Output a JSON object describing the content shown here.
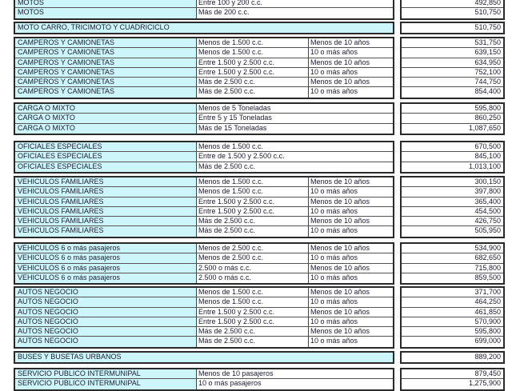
{
  "colors": {
    "category_bg": "#ccf6fa",
    "border": "#2a2a2a",
    "text": "#1c1c30"
  },
  "groups": [
    {
      "rows": [
        [
          "MOTOS",
          "Entre 100 y 200 c.c.",
          "",
          "492,850"
        ],
        [
          "MOTOS",
          "Más de 200 c.c.",
          "",
          "510,750"
        ]
      ]
    },
    {
      "rows": [
        [
          "MOTO CARRO, TRICIMOTO Y CUADRICICLO",
          "",
          "",
          "510,750"
        ]
      ]
    },
    {
      "rows": [
        [
          "CAMPEROS Y CAMIONETAS",
          "Menos de 1.500 c.c.",
          "Menos de 10 años",
          "531,750"
        ],
        [
          "CAMPEROS Y CAMIONETAS",
          "Menos de 1.500 c.c.",
          "10 o más años",
          "639,150"
        ],
        [
          "CAMPEROS Y CAMIONETAS",
          "Entre  1.500 y 2.500 c.c.",
          "Menos de 10 años",
          "634,950"
        ],
        [
          "CAMPEROS Y CAMIONETAS",
          "Entre  1.500 y 2.500 c.c.",
          "10 o más años",
          "752,100"
        ],
        [
          "CAMPEROS Y CAMIONETAS",
          "Más de 2.500 c.c.",
          "Menos de 10 años",
          "744,750"
        ],
        [
          "CAMPEROS Y CAMIONETAS",
          "Más de 2.500 c.c.",
          "10 o más años",
          "854,400"
        ]
      ]
    },
    {
      "rows": [
        [
          "CARGA O MIXTO",
          "Menos de 5 Toneladas",
          "",
          "595,800"
        ],
        [
          "CARGA O MIXTO",
          "Entre 5 y 15 Toneladas",
          "",
          "860,250"
        ],
        [
          "CARGA O MIXTO",
          "Más de 15 Toneladas",
          "",
          "1,087,650"
        ]
      ]
    },
    {
      "rows": [
        [
          "OFICIALES ESPECIALES",
          "Menos de 1.500 c.c.",
          "",
          "670,500"
        ],
        [
          "OFICIALES ESPECIALES",
          "Entre de 1.500 y 2.500 c.c.",
          "",
          "845,100"
        ],
        [
          "OFICIALES ESPECIALES",
          "Más de 2.500 c.c.",
          "",
          "1,013,100"
        ]
      ]
    },
    {
      "rows": [
        [
          "VEHICULOS FAMILIARES",
          "Menos de 1.500 c.c.",
          "Menos de 10 años",
          "300,150"
        ],
        [
          "VEHICULOS FAMILIARES",
          "Menos de 1.500 c.c.",
          "10 o más años",
          "397,800"
        ],
        [
          "VEHICULOS FAMILIARES",
          "Entre 1.500 y 2.500 c.c.",
          "Menos de 10 años",
          "365,400"
        ],
        [
          "VEHICULOS FAMILIARES",
          "Entre 1.500 y 2.500 c.c.",
          "10 o más años",
          "454,500"
        ],
        [
          "VEHICULOS FAMILIARES",
          "Más de 2.500 c.c.",
          "Menos de 10 años",
          "426,750"
        ],
        [
          "VEHICULOS FAMILIARES",
          "Más de 2.500 c.c.",
          "10 o más años",
          "505,950"
        ]
      ]
    },
    {
      "rows": [
        [
          "VEHICULOS 6 o más pasajeros",
          "Menos de 2.500 c.c.",
          "Menos de 10 años",
          "534,900"
        ],
        [
          "VEHICULOS 6 o más pasajeros",
          "Menos de 2.500 c.c.",
          "10 o más años",
          "682,650"
        ],
        [
          "VEHICULOS 6 o más pasajeros",
          "2.500 o más c.c.",
          "Menos de 10 años",
          "715,800"
        ],
        [
          "VEHICULOS 6 o más pasajeros",
          "2.500 o más c.c.",
          "10 o más años",
          "859,500"
        ]
      ]
    },
    {
      "rows": [
        [
          "AUTOS NEGOCIO",
          "Menos de 1.500 c.c.",
          "Menos de 10 años",
          "371,700"
        ],
        [
          "AUTOS NEGOCIO",
          "Menos de 1.500 c.c.",
          "10 o más años",
          "464,250"
        ],
        [
          "AUTOS NEGOCIO",
          "Entre 1.500 y 2.500 c.c.",
          "Menos de 10 años",
          "461,850"
        ],
        [
          "AUTOS NEGOCIO",
          "Entre 1.500 y 2.500 c.c.",
          "10 o más años",
          "570,900"
        ],
        [
          "AUTOS NEGOCIO",
          "Más de 2.500 c.c.",
          "Menos de 10 años",
          "595,800"
        ],
        [
          "AUTOS NEGOCIO",
          "Más de 2.500 c.c.",
          "10 o más años",
          "699,000"
        ]
      ]
    },
    {
      "rows": [
        [
          "BUSES Y BUSETAS URBANOS",
          "",
          "",
          "889,200"
        ]
      ]
    },
    {
      "rows": [
        [
          "SERVICIO PUBLICO INTERMUNIPAL",
          "Menos de 10 pasajeros",
          "",
          "879,450"
        ],
        [
          "SERVICIO PUBLICO INTERMUNIPAL",
          "10 o más pasajeros",
          "",
          "1,275,900"
        ]
      ]
    }
  ]
}
